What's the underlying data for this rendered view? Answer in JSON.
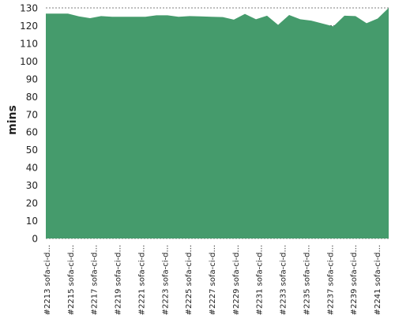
{
  "chart_data": {
    "type": "area",
    "title": "",
    "xlabel": "",
    "ylabel": "mins",
    "ylim": [
      0,
      130
    ],
    "y_ticks": [
      0,
      10,
      20,
      30,
      40,
      50,
      60,
      70,
      80,
      90,
      100,
      110,
      120,
      130
    ],
    "grid": true,
    "legend": "none",
    "fill_color": "#459b6c",
    "grid_color": "#555555",
    "tick_labels": [
      "#2213 sofa-ci-d...",
      "#2215 sofa-ci-d...",
      "#2217 sofa-ci-d...",
      "#2219 sofa-ci-d...",
      "#2221 sofa-ci-d...",
      "#2223 sofa-ci-d...",
      "#2225 sofa-ci-d...",
      "#2227 sofa-ci-d...",
      "#2229 sofa-ci-d...",
      "#2231 sofa-ci-d...",
      "#2233 sofa-ci-d...",
      "#2235 sofa-ci-d...",
      "#2237 sofa-ci-d...",
      "#2239 sofa-ci-d...",
      "#2241 sofa-ci-d..."
    ],
    "values": [
      126.8,
      126.8,
      126.8,
      125.2,
      124.2,
      125.4,
      125.0,
      125.0,
      125.0,
      125.0,
      125.8,
      125.8,
      125.0,
      125.4,
      125.2,
      125.0,
      124.8,
      123.4,
      126.6,
      123.6,
      125.6,
      120.4,
      126.0,
      123.6,
      122.8,
      121.2,
      119.6,
      125.6,
      125.4,
      121.4,
      124.0,
      133.0
    ]
  }
}
